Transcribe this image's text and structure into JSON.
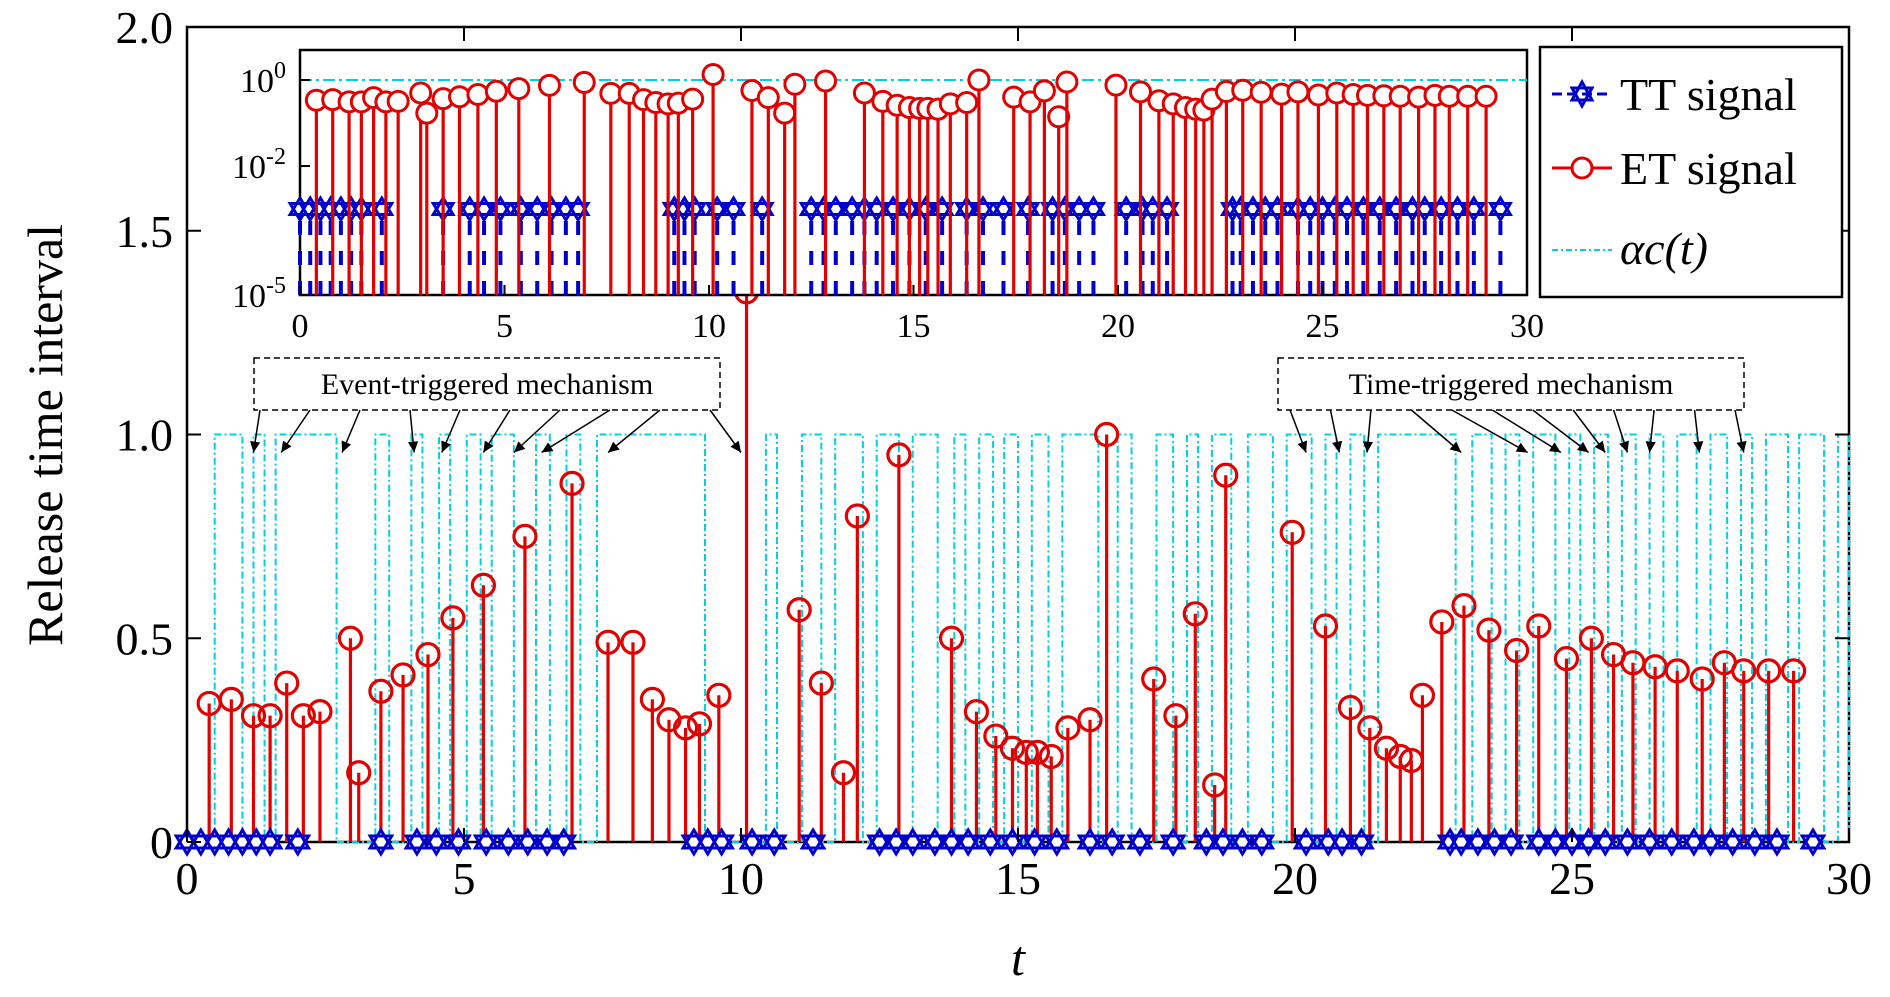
{
  "chart_data": [
    {
      "type": "stem",
      "panel": "main",
      "xlabel": "t",
      "ylabel": "Release time interval",
      "xlim": [
        0,
        30
      ],
      "ylim": [
        0,
        2.0
      ],
      "xticks": [
        "0",
        "5",
        "10",
        "15",
        "20",
        "25",
        "30"
      ],
      "yticks": [
        "0",
        "0.5",
        "1.0",
        "1.5",
        "2.0"
      ],
      "grid": false,
      "legend_position": "top-right",
      "legend": [
        {
          "key": "tt",
          "label": "TT signal"
        },
        {
          "key": "et",
          "label": "ET signal"
        },
        {
          "key": "alpha",
          "label": "αc(t)"
        }
      ],
      "annotations": [
        {
          "text": "Event-triggered mechanism"
        },
        {
          "text": "Time-triggered mechanism"
        }
      ],
      "et_signal": {
        "x": [
          0.4,
          0.8,
          1.2,
          1.5,
          1.8,
          2.1,
          2.4,
          2.95,
          3.1,
          3.5,
          3.9,
          4.35,
          4.8,
          5.35,
          6.1,
          6.95,
          7.6,
          8.05,
          8.4,
          8.7,
          9.0,
          9.25,
          9.6,
          10.1,
          11.05,
          11.45,
          11.85,
          12.1,
          12.85,
          13.8,
          14.25,
          14.6,
          14.9,
          15.15,
          15.35,
          15.6,
          15.9,
          16.3,
          16.6,
          17.45,
          17.85,
          18.2,
          18.55,
          18.75,
          19.95,
          20.55,
          21.0,
          21.35,
          21.65,
          21.9,
          22.1,
          22.3,
          22.65,
          23.05,
          23.5,
          24.0,
          24.4,
          24.9,
          25.35,
          25.75,
          26.1,
          26.5,
          26.9,
          27.35,
          27.75,
          28.1,
          28.55,
          29.0
        ],
        "y": [
          0.34,
          0.35,
          0.31,
          0.31,
          0.39,
          0.31,
          0.32,
          0.5,
          0.17,
          0.37,
          0.41,
          0.46,
          0.55,
          0.63,
          0.75,
          0.88,
          0.49,
          0.49,
          0.35,
          0.3,
          0.28,
          0.29,
          0.36,
          1.35,
          0.57,
          0.39,
          0.17,
          0.8,
          0.95,
          0.5,
          0.32,
          0.26,
          0.23,
          0.22,
          0.22,
          0.21,
          0.28,
          0.3,
          1.0,
          0.4,
          0.31,
          0.56,
          0.14,
          0.9,
          0.76,
          0.53,
          0.33,
          0.28,
          0.23,
          0.21,
          0.2,
          0.36,
          0.54,
          0.58,
          0.52,
          0.47,
          0.53,
          0.45,
          0.5,
          0.46,
          0.44,
          0.43,
          0.42,
          0.4,
          0.44,
          0.42,
          0.42,
          0.42
        ]
      },
      "tt_signal": {
        "x": [
          0.0,
          0.25,
          0.5,
          0.75,
          1.0,
          1.25,
          1.5,
          2.0,
          3.5,
          4.15,
          4.5,
          4.9,
          5.4,
          5.8,
          6.15,
          6.5,
          6.8,
          9.15,
          9.4,
          9.65,
          10.2,
          10.6,
          11.3,
          12.5,
          12.8,
          13.1,
          13.5,
          13.8,
          14.1,
          14.5,
          14.9,
          15.3,
          15.7,
          16.3,
          16.7,
          17.2,
          17.8,
          18.4,
          18.7,
          19.05,
          19.4,
          20.2,
          20.6,
          20.85,
          21.2,
          22.8,
          23.0,
          23.3,
          23.6,
          23.9,
          24.4,
          24.7,
          25.0,
          25.3,
          25.6,
          26.0,
          26.4,
          26.8,
          27.2,
          27.5,
          27.9,
          28.3,
          28.7,
          29.35
        ]
      },
      "alpha_c": {
        "high": 1.0,
        "low": 0.0,
        "intervals_at_high": [
          [
            0.5,
            1.0
          ],
          [
            1.2,
            1.4
          ],
          [
            1.6,
            2.7
          ],
          [
            3.4,
            3.65
          ],
          [
            4.05,
            4.25
          ],
          [
            4.55,
            4.75
          ],
          [
            5.05,
            5.3
          ],
          [
            5.5,
            5.9
          ],
          [
            6.3,
            6.55
          ],
          [
            6.85,
            7.1
          ],
          [
            7.4,
            9.35
          ],
          [
            10.45,
            10.65
          ],
          [
            11.1,
            11.45
          ],
          [
            11.7,
            12.2
          ],
          [
            12.45,
            12.85
          ],
          [
            13.1,
            13.55
          ],
          [
            13.85,
            14.05
          ],
          [
            14.3,
            14.55
          ],
          [
            14.75,
            15.0
          ],
          [
            15.25,
            15.55
          ],
          [
            15.8,
            16.45
          ],
          [
            16.8,
            17.05
          ],
          [
            17.5,
            17.8
          ],
          [
            18.05,
            18.25
          ],
          [
            18.5,
            18.85
          ],
          [
            19.15,
            19.6
          ],
          [
            19.85,
            20.3
          ],
          [
            20.55,
            20.75
          ],
          [
            21.0,
            21.25
          ],
          [
            21.5,
            22.9
          ],
          [
            23.2,
            23.55
          ],
          [
            23.8,
            24.05
          ],
          [
            24.3,
            24.7
          ],
          [
            24.95,
            25.15
          ],
          [
            25.4,
            25.65
          ],
          [
            25.9,
            26.15
          ],
          [
            26.4,
            26.65
          ],
          [
            26.9,
            27.25
          ],
          [
            27.5,
            27.8
          ],
          [
            28.05,
            28.25
          ],
          [
            28.5,
            28.9
          ],
          [
            29.1,
            29.55
          ],
          [
            29.8,
            30.0
          ]
        ]
      }
    },
    {
      "type": "stem",
      "panel": "inset",
      "yscale": "log",
      "xlim": [
        0,
        30
      ],
      "ylim": [
        1e-05,
        5
      ],
      "xticks": [
        "0",
        "5",
        "10",
        "15",
        "20",
        "25",
        "30"
      ],
      "yticks": [
        "10^0",
        "10^-2",
        "10^-5"
      ],
      "alpha_c_level": 1.0,
      "tt_level": 0.001,
      "tt_minor_stem_levels": [
        0.00015,
        3e-05
      ]
    }
  ]
}
